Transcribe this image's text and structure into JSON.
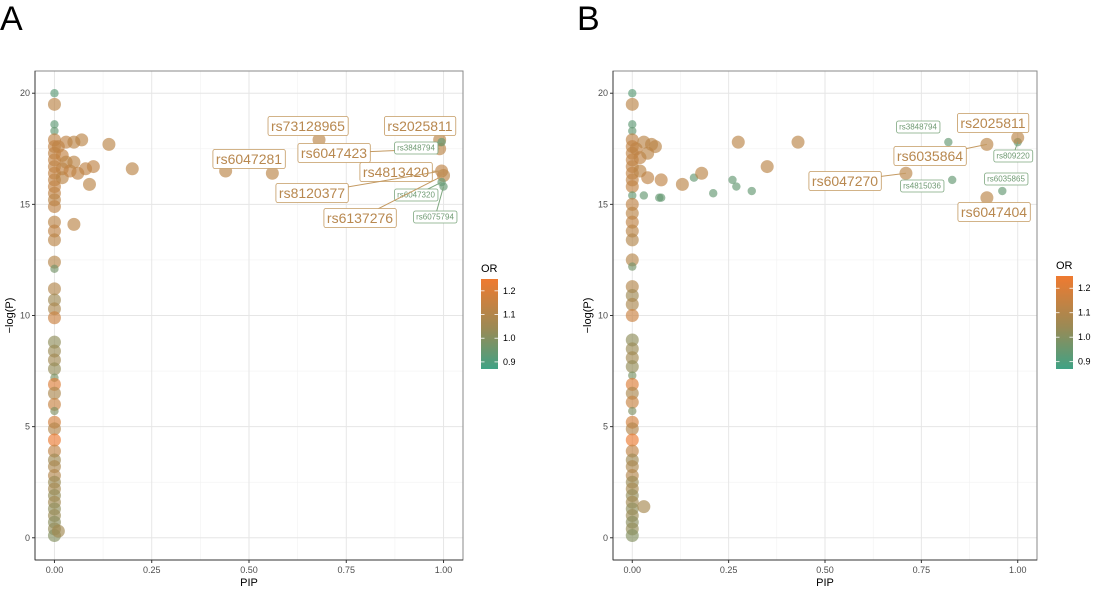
{
  "figure": {
    "panels": [
      "A",
      "B"
    ]
  },
  "chart_data": [
    {
      "panel": "A",
      "type": "scatter",
      "title": "",
      "xlabel": "PIP",
      "ylabel": "−log(P)",
      "xlim": [
        -0.05,
        1.05
      ],
      "ylim": [
        -1,
        21
      ],
      "xticks": [
        "0.00",
        "0.25",
        "0.50",
        "0.75",
        "1.00"
      ],
      "xtick_values": [
        0,
        0.25,
        0.5,
        0.75,
        1.0
      ],
      "yticks": [
        "0",
        "5",
        "10",
        "15",
        "20"
      ],
      "ytick_values": [
        0,
        5,
        10,
        15,
        20
      ],
      "grid": true,
      "legend": {
        "title": "OR",
        "type": "colorbar",
        "placement": "right",
        "ticks": [
          "0.9",
          "1.0",
          "1.1",
          "1.2"
        ],
        "tick_values": [
          0.9,
          1.0,
          1.1,
          1.2
        ],
        "range": [
          0.87,
          1.25
        ],
        "low_color": "#3fa285",
        "mid_color": "#9a8a55",
        "high_color": "#ef7a30"
      },
      "points": [
        {
          "x": 0.0,
          "y": 20.0,
          "or": 0.92
        },
        {
          "x": 0.0,
          "y": 19.5,
          "or": 1.12
        },
        {
          "x": 0.0,
          "y": 18.6,
          "or": 0.93
        },
        {
          "x": 0.0,
          "y": 18.3,
          "or": 0.94
        },
        {
          "x": 0.0,
          "y": 17.9,
          "or": 1.13
        },
        {
          "x": 0.0,
          "y": 17.6,
          "or": 1.14
        },
        {
          "x": 0.0,
          "y": 17.3,
          "or": 1.13
        },
        {
          "x": 0.0,
          "y": 17.0,
          "or": 1.14
        },
        {
          "x": 0.0,
          "y": 16.7,
          "or": 1.13
        },
        {
          "x": 0.0,
          "y": 16.4,
          "or": 1.14
        },
        {
          "x": 0.0,
          "y": 16.1,
          "or": 1.13
        },
        {
          "x": 0.0,
          "y": 15.8,
          "or": 1.14
        },
        {
          "x": 0.0,
          "y": 15.5,
          "or": 1.13
        },
        {
          "x": 0.0,
          "y": 15.2,
          "or": 1.12
        },
        {
          "x": 0.0,
          "y": 14.9,
          "or": 1.13
        },
        {
          "x": 0.0,
          "y": 14.2,
          "or": 1.12
        },
        {
          "x": 0.0,
          "y": 13.8,
          "or": 1.13
        },
        {
          "x": 0.0,
          "y": 13.4,
          "or": 1.12
        },
        {
          "x": 0.0,
          "y": 12.4,
          "or": 1.11
        },
        {
          "x": 0.0,
          "y": 12.1,
          "or": 0.97
        },
        {
          "x": 0.0,
          "y": 11.2,
          "or": 1.1
        },
        {
          "x": 0.0,
          "y": 10.7,
          "or": 1.05
        },
        {
          "x": 0.0,
          "y": 10.3,
          "or": 1.08
        },
        {
          "x": 0.0,
          "y": 9.9,
          "or": 1.16
        },
        {
          "x": 0.0,
          "y": 8.8,
          "or": 1.02
        },
        {
          "x": 0.0,
          "y": 8.4,
          "or": 1.04
        },
        {
          "x": 0.0,
          "y": 8.0,
          "or": 1.06
        },
        {
          "x": 0.0,
          "y": 7.6,
          "or": 1.03
        },
        {
          "x": 0.0,
          "y": 7.2,
          "or": 0.98
        },
        {
          "x": 0.0,
          "y": 6.9,
          "or": 1.2
        },
        {
          "x": 0.0,
          "y": 6.5,
          "or": 1.08
        },
        {
          "x": 0.0,
          "y": 6.0,
          "or": 1.15
        },
        {
          "x": 0.0,
          "y": 5.7,
          "or": 0.99
        },
        {
          "x": 0.0,
          "y": 5.2,
          "or": 1.18
        },
        {
          "x": 0.0,
          "y": 4.9,
          "or": 1.1
        },
        {
          "x": 0.0,
          "y": 4.4,
          "or": 1.24
        },
        {
          "x": 0.0,
          "y": 3.9,
          "or": 1.13
        },
        {
          "x": 0.0,
          "y": 3.5,
          "or": 1.05
        },
        {
          "x": 0.0,
          "y": 3.2,
          "or": 1.08
        },
        {
          "x": 0.0,
          "y": 2.8,
          "or": 1.1
        },
        {
          "x": 0.0,
          "y": 2.5,
          "or": 1.04
        },
        {
          "x": 0.0,
          "y": 2.2,
          "or": 1.07
        },
        {
          "x": 0.0,
          "y": 1.9,
          "or": 1.03
        },
        {
          "x": 0.0,
          "y": 1.6,
          "or": 1.06
        },
        {
          "x": 0.0,
          "y": 1.3,
          "or": 1.02
        },
        {
          "x": 0.0,
          "y": 1.0,
          "or": 1.04
        },
        {
          "x": 0.0,
          "y": 0.7,
          "or": 1.01
        },
        {
          "x": 0.0,
          "y": 0.4,
          "or": 1.03
        },
        {
          "x": 0.0,
          "y": 0.1,
          "or": 1.0
        },
        {
          "x": 0.01,
          "y": 0.3,
          "or": 1.06
        },
        {
          "x": 0.01,
          "y": 17.6,
          "or": 1.13
        },
        {
          "x": 0.02,
          "y": 17.2,
          "or": 1.14
        },
        {
          "x": 0.02,
          "y": 16.6,
          "or": 1.13
        },
        {
          "x": 0.02,
          "y": 16.2,
          "or": 1.12
        },
        {
          "x": 0.03,
          "y": 17.8,
          "or": 1.13
        },
        {
          "x": 0.03,
          "y": 16.9,
          "or": 1.12
        },
        {
          "x": 0.04,
          "y": 16.5,
          "or": 1.14
        },
        {
          "x": 0.05,
          "y": 17.8,
          "or": 1.12
        },
        {
          "x": 0.05,
          "y": 16.9,
          "or": 1.12
        },
        {
          "x": 0.06,
          "y": 16.4,
          "or": 1.13
        },
        {
          "x": 0.05,
          "y": 14.1,
          "or": 1.12
        },
        {
          "x": 0.07,
          "y": 17.9,
          "or": 1.12
        },
        {
          "x": 0.08,
          "y": 16.6,
          "or": 1.13
        },
        {
          "x": 0.09,
          "y": 15.9,
          "or": 1.12
        },
        {
          "x": 0.1,
          "y": 16.7,
          "or": 1.13
        },
        {
          "x": 0.14,
          "y": 17.7,
          "or": 1.12
        },
        {
          "x": 0.2,
          "y": 16.6,
          "or": 1.12
        },
        {
          "x": 0.44,
          "y": 16.5,
          "or": 1.12
        },
        {
          "x": 0.56,
          "y": 16.4,
          "or": 1.12
        },
        {
          "x": 0.68,
          "y": 17.9,
          "or": 1.12
        },
        {
          "x": 0.99,
          "y": 17.9,
          "or": 1.12
        },
        {
          "x": 0.99,
          "y": 17.5,
          "or": 1.12
        },
        {
          "x": 0.995,
          "y": 17.8,
          "or": 0.94
        },
        {
          "x": 0.995,
          "y": 16.5,
          "or": 1.13
        },
        {
          "x": 1.0,
          "y": 16.3,
          "or": 1.12
        },
        {
          "x": 0.995,
          "y": 16.0,
          "or": 0.94
        },
        {
          "x": 1.0,
          "y": 15.8,
          "or": 0.94
        }
      ],
      "annotations": [
        {
          "text": "rs73128965",
          "style": "large",
          "x": 0.68,
          "y": 17.9
        },
        {
          "text": "rs2025811",
          "style": "large",
          "x": 0.99,
          "y": 17.9
        },
        {
          "text": "rs6047281",
          "style": "large",
          "x": 0.56,
          "y": 16.4
        },
        {
          "text": "rs6047423",
          "style": "large",
          "x": 0.99,
          "y": 17.5
        },
        {
          "text": "rs3848794",
          "style": "small",
          "x": 0.995,
          "y": 17.8
        },
        {
          "text": "rs4813420",
          "style": "large",
          "x": 0.995,
          "y": 16.5
        },
        {
          "text": "rs8120377",
          "style": "large",
          "x": 0.995,
          "y": 16.5
        },
        {
          "text": "rs6047320",
          "style": "small",
          "x": 0.995,
          "y": 16.0
        },
        {
          "text": "rs6137276",
          "style": "large",
          "x": 1.0,
          "y": 16.3
        },
        {
          "text": "rs6075794",
          "style": "small",
          "x": 1.0,
          "y": 15.8
        }
      ]
    },
    {
      "panel": "B",
      "type": "scatter",
      "title": "",
      "xlabel": "PIP",
      "ylabel": "−log(P)",
      "xlim": [
        -0.05,
        1.05
      ],
      "ylim": [
        -1,
        21
      ],
      "xticks": [
        "0.00",
        "0.25",
        "0.50",
        "0.75",
        "1.00"
      ],
      "xtick_values": [
        0,
        0.25,
        0.5,
        0.75,
        1.0
      ],
      "yticks": [
        "0",
        "5",
        "10",
        "15",
        "20"
      ],
      "ytick_values": [
        0,
        5,
        10,
        15,
        20
      ],
      "grid": true,
      "legend": {
        "title": "OR",
        "type": "colorbar",
        "placement": "right",
        "ticks": [
          "0.9",
          "1.0",
          "1.1",
          "1.2"
        ],
        "tick_values": [
          0.9,
          1.0,
          1.1,
          1.2
        ],
        "range": [
          0.87,
          1.25
        ],
        "low_color": "#3fa285",
        "mid_color": "#9a8a55",
        "high_color": "#ef7a30"
      },
      "points": [
        {
          "x": 0.0,
          "y": 20.0,
          "or": 0.92
        },
        {
          "x": 0.0,
          "y": 19.5,
          "or": 1.12
        },
        {
          "x": 0.0,
          "y": 18.6,
          "or": 0.93
        },
        {
          "x": 0.0,
          "y": 18.3,
          "or": 0.94
        },
        {
          "x": 0.0,
          "y": 17.9,
          "or": 1.13
        },
        {
          "x": 0.0,
          "y": 17.6,
          "or": 1.14
        },
        {
          "x": 0.0,
          "y": 17.3,
          "or": 1.13
        },
        {
          "x": 0.0,
          "y": 17.0,
          "or": 1.14
        },
        {
          "x": 0.0,
          "y": 16.7,
          "or": 1.13
        },
        {
          "x": 0.0,
          "y": 16.4,
          "or": 1.14
        },
        {
          "x": 0.0,
          "y": 16.1,
          "or": 1.13
        },
        {
          "x": 0.0,
          "y": 15.8,
          "or": 1.14
        },
        {
          "x": 0.0,
          "y": 15.4,
          "or": 0.94
        },
        {
          "x": 0.0,
          "y": 15.0,
          "or": 1.13
        },
        {
          "x": 0.0,
          "y": 14.6,
          "or": 1.12
        },
        {
          "x": 0.0,
          "y": 14.2,
          "or": 1.13
        },
        {
          "x": 0.0,
          "y": 13.8,
          "or": 1.12
        },
        {
          "x": 0.0,
          "y": 13.4,
          "or": 1.1
        },
        {
          "x": 0.0,
          "y": 12.5,
          "or": 1.11
        },
        {
          "x": 0.0,
          "y": 12.2,
          "or": 0.97
        },
        {
          "x": 0.0,
          "y": 11.3,
          "or": 1.1
        },
        {
          "x": 0.0,
          "y": 10.9,
          "or": 1.05
        },
        {
          "x": 0.0,
          "y": 10.5,
          "or": 1.08
        },
        {
          "x": 0.0,
          "y": 10.0,
          "or": 1.16
        },
        {
          "x": 0.0,
          "y": 8.9,
          "or": 1.02
        },
        {
          "x": 0.0,
          "y": 8.5,
          "or": 1.04
        },
        {
          "x": 0.0,
          "y": 8.1,
          "or": 1.06
        },
        {
          "x": 0.0,
          "y": 7.7,
          "or": 1.03
        },
        {
          "x": 0.0,
          "y": 7.3,
          "or": 0.98
        },
        {
          "x": 0.0,
          "y": 6.9,
          "or": 1.2
        },
        {
          "x": 0.0,
          "y": 6.5,
          "or": 1.08
        },
        {
          "x": 0.0,
          "y": 6.1,
          "or": 1.15
        },
        {
          "x": 0.0,
          "y": 5.7,
          "or": 0.99
        },
        {
          "x": 0.0,
          "y": 5.2,
          "or": 1.18
        },
        {
          "x": 0.0,
          "y": 4.9,
          "or": 1.1
        },
        {
          "x": 0.0,
          "y": 4.4,
          "or": 1.24
        },
        {
          "x": 0.0,
          "y": 3.9,
          "or": 1.13
        },
        {
          "x": 0.0,
          "y": 3.5,
          "or": 1.05
        },
        {
          "x": 0.0,
          "y": 3.2,
          "or": 1.08
        },
        {
          "x": 0.0,
          "y": 2.8,
          "or": 1.1
        },
        {
          "x": 0.0,
          "y": 2.5,
          "or": 1.04
        },
        {
          "x": 0.0,
          "y": 2.2,
          "or": 1.07
        },
        {
          "x": 0.0,
          "y": 1.9,
          "or": 1.03
        },
        {
          "x": 0.0,
          "y": 1.6,
          "or": 1.06
        },
        {
          "x": 0.0,
          "y": 1.3,
          "or": 1.02
        },
        {
          "x": 0.0,
          "y": 1.0,
          "or": 1.04
        },
        {
          "x": 0.0,
          "y": 0.7,
          "or": 1.01
        },
        {
          "x": 0.0,
          "y": 0.4,
          "or": 1.03
        },
        {
          "x": 0.0,
          "y": 0.1,
          "or": 1.0
        },
        {
          "x": 0.03,
          "y": 1.4,
          "or": 1.07
        },
        {
          "x": 0.01,
          "y": 17.5,
          "or": 1.13
        },
        {
          "x": 0.02,
          "y": 17.1,
          "or": 1.13
        },
        {
          "x": 0.02,
          "y": 16.5,
          "or": 1.12
        },
        {
          "x": 0.03,
          "y": 17.8,
          "or": 1.12
        },
        {
          "x": 0.04,
          "y": 17.3,
          "or": 1.12
        },
        {
          "x": 0.04,
          "y": 16.2,
          "or": 1.13
        },
        {
          "x": 0.05,
          "y": 17.7,
          "or": 1.12
        },
        {
          "x": 0.06,
          "y": 17.6,
          "or": 1.12
        },
        {
          "x": 0.03,
          "y": 15.4,
          "or": 0.94
        },
        {
          "x": 0.07,
          "y": 15.3,
          "or": 0.94
        },
        {
          "x": 0.075,
          "y": 15.3,
          "or": 0.94
        },
        {
          "x": 0.075,
          "y": 16.1,
          "or": 1.13
        },
        {
          "x": 0.13,
          "y": 15.9,
          "or": 1.12
        },
        {
          "x": 0.16,
          "y": 16.2,
          "or": 0.94
        },
        {
          "x": 0.18,
          "y": 16.4,
          "or": 1.12
        },
        {
          "x": 0.21,
          "y": 15.5,
          "or": 0.94
        },
        {
          "x": 0.26,
          "y": 16.1,
          "or": 0.94
        },
        {
          "x": 0.27,
          "y": 15.8,
          "or": 0.94
        },
        {
          "x": 0.275,
          "y": 17.8,
          "or": 1.12
        },
        {
          "x": 0.31,
          "y": 15.6,
          "or": 0.94
        },
        {
          "x": 0.35,
          "y": 16.7,
          "or": 1.12
        },
        {
          "x": 0.43,
          "y": 17.8,
          "or": 1.12
        },
        {
          "x": 0.71,
          "y": 16.4,
          "or": 1.12
        },
        {
          "x": 0.82,
          "y": 17.8,
          "or": 0.94
        },
        {
          "x": 0.83,
          "y": 16.1,
          "or": 0.94
        },
        {
          "x": 0.92,
          "y": 17.7,
          "or": 1.12
        },
        {
          "x": 0.92,
          "y": 15.3,
          "or": 1.12
        },
        {
          "x": 0.96,
          "y": 15.6,
          "or": 0.94
        },
        {
          "x": 1.0,
          "y": 17.8,
          "or": 0.94
        },
        {
          "x": 1.0,
          "y": 18.0,
          "or": 1.12
        }
      ],
      "annotations": [
        {
          "text": "rs3848794",
          "style": "small",
          "x": 0.82,
          "y": 17.8
        },
        {
          "text": "rs2025811",
          "style": "large",
          "x": 1.0,
          "y": 18.0
        },
        {
          "text": "rs6035864",
          "style": "large",
          "x": 0.92,
          "y": 17.7
        },
        {
          "text": "rs809220",
          "style": "small",
          "x": 1.0,
          "y": 17.8
        },
        {
          "text": "rs6047270",
          "style": "large",
          "x": 0.71,
          "y": 16.4
        },
        {
          "text": "rs4815036",
          "style": "small",
          "x": 0.83,
          "y": 16.1
        },
        {
          "text": "rs6035865",
          "style": "small",
          "x": 0.96,
          "y": 15.6
        },
        {
          "text": "rs6047404",
          "style": "large",
          "x": 0.92,
          "y": 15.3
        }
      ]
    }
  ]
}
